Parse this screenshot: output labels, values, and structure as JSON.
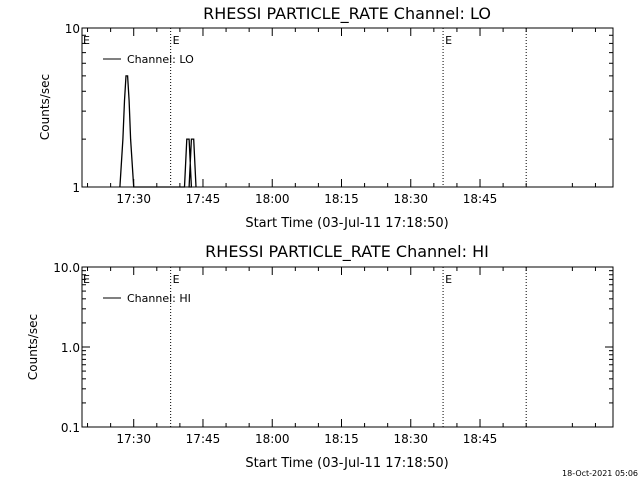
{
  "footer_timestamp": "18-Oct-2021 05:06",
  "chart_data": [
    {
      "type": "line",
      "title": "RHESSI PARTICLE_RATE Channel: LO",
      "xlabel": "Start Time (03-Jul-11 17:18:50)",
      "ylabel": "Counts/sec",
      "yscale": "log",
      "ylim": [
        1,
        10
      ],
      "xlim_minutes_after_17_00": [
        18.8,
        133.8
      ],
      "xticks": [
        "17:30",
        "17:45",
        "18:00",
        "18:15",
        "18:30",
        "18:45"
      ],
      "yticks": [
        "1",
        "10"
      ],
      "legend": {
        "label": "Channel: LO",
        "position": "top-left"
      },
      "event_markers": [
        {
          "time": "17:38",
          "label": "E"
        },
        {
          "time": "18:37",
          "label": "E"
        },
        {
          "time": "18:55",
          "label": ""
        }
      ],
      "edge_label": "E",
      "series": [
        {
          "name": "Channel: LO",
          "points": [
            [
              "17:27:00",
              1
            ],
            [
              "17:27:40",
              2
            ],
            [
              "17:28:00",
              3.5
            ],
            [
              "17:28:20",
              5
            ],
            [
              "17:28:40",
              5
            ],
            [
              "17:29:00",
              3.5
            ],
            [
              "17:29:20",
              2
            ],
            [
              "17:30:00",
              1
            ],
            [
              "17:41:00",
              1
            ],
            [
              "17:41:30",
              2
            ],
            [
              "17:42:00",
              2
            ],
            [
              "17:42:30",
              1
            ],
            [
              "17:42:00",
              1
            ],
            [
              "17:42:30",
              2
            ],
            [
              "17:43:00",
              2
            ],
            [
              "17:43:30",
              1
            ]
          ]
        }
      ]
    },
    {
      "type": "line",
      "title": "RHESSI PARTICLE_RATE Channel: HI",
      "xlabel": "Start Time (03-Jul-11 17:18:50)",
      "ylabel": "Counts/sec",
      "yscale": "log",
      "ylim": [
        0.1,
        10
      ],
      "xlim_minutes_after_17_00": [
        18.8,
        133.8
      ],
      "xticks": [
        "17:30",
        "17:45",
        "18:00",
        "18:15",
        "18:30",
        "18:45"
      ],
      "yticks": [
        "0.1",
        "1.0",
        "10.0"
      ],
      "legend": {
        "label": "Channel: HI",
        "position": "top-left"
      },
      "event_markers": [
        {
          "time": "17:38",
          "label": "E"
        },
        {
          "time": "18:37",
          "label": "E"
        },
        {
          "time": "18:55",
          "label": ""
        }
      ],
      "edge_label": "E",
      "series": [
        {
          "name": "Channel: HI",
          "points": []
        }
      ]
    }
  ]
}
